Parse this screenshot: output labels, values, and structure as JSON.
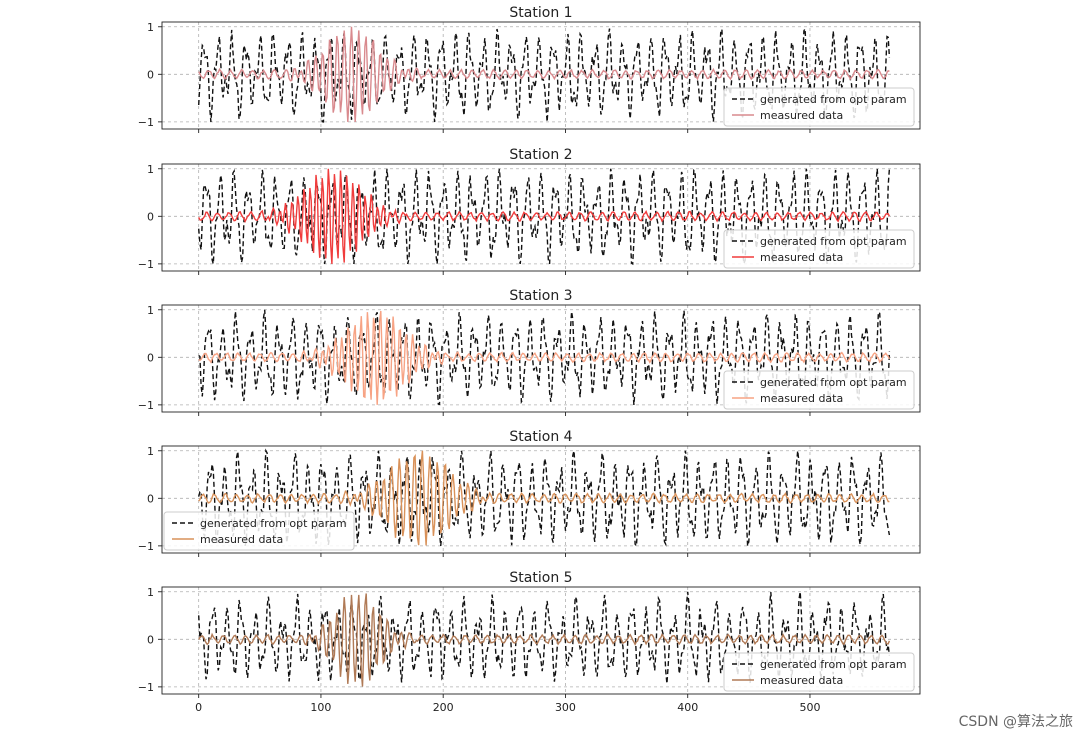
{
  "chart_data": [
    {
      "type": "line",
      "title": "Station 1",
      "xlim": [
        -30,
        590
      ],
      "ylim": [
        -1.15,
        1.1
      ],
      "yticks": [
        -1,
        0,
        1
      ],
      "xticks": [
        0,
        100,
        200,
        300,
        400,
        500
      ],
      "show_x_tick_labels": false,
      "grid": true,
      "series": [
        {
          "name": "generated from opt param",
          "style": "dashed",
          "color": "#111111",
          "amplitude": 0.8,
          "seed": 11
        },
        {
          "name": "measured data",
          "style": "solid",
          "color": "#d98a8e",
          "burst_center": 125,
          "burst_width": 30,
          "burst_freq": 0.17,
          "amplitude": 1.0,
          "seed": 21
        }
      ],
      "legend": "bottom-right"
    },
    {
      "type": "line",
      "title": "Station 2",
      "xlim": [
        -30,
        590
      ],
      "ylim": [
        -1.15,
        1.1
      ],
      "yticks": [
        -1,
        0,
        1
      ],
      "xticks": [
        0,
        100,
        200,
        300,
        400,
        500
      ],
      "show_x_tick_labels": false,
      "grid": true,
      "series": [
        {
          "name": "generated from opt param",
          "style": "dashed",
          "color": "#111111",
          "amplitude": 0.85,
          "seed": 12
        },
        {
          "name": "measured data",
          "style": "solid",
          "color": "#f03c3c",
          "burst_center": 110,
          "burst_width": 32,
          "burst_freq": 0.2,
          "amplitude": 1.0,
          "seed": 22
        }
      ],
      "legend": "bottom-right"
    },
    {
      "type": "line",
      "title": "Station 3",
      "xlim": [
        -30,
        590
      ],
      "ylim": [
        -1.15,
        1.1
      ],
      "yticks": [
        -1,
        0,
        1
      ],
      "xticks": [
        0,
        100,
        200,
        300,
        400,
        500
      ],
      "show_x_tick_labels": false,
      "grid": true,
      "series": [
        {
          "name": "generated from opt param",
          "style": "dashed",
          "color": "#111111",
          "amplitude": 0.8,
          "seed": 13
        },
        {
          "name": "measured data",
          "style": "solid",
          "color": "#f7a384",
          "burst_center": 145,
          "burst_width": 33,
          "burst_freq": 0.19,
          "amplitude": 1.0,
          "seed": 23
        }
      ],
      "legend": "bottom-right"
    },
    {
      "type": "line",
      "title": "Station 4",
      "xlim": [
        -30,
        590
      ],
      "ylim": [
        -1.15,
        1.1
      ],
      "yticks": [
        -1,
        0,
        1
      ],
      "xticks": [
        0,
        100,
        200,
        300,
        400,
        500
      ],
      "show_x_tick_labels": false,
      "grid": true,
      "series": [
        {
          "name": "generated from opt param",
          "style": "dashed",
          "color": "#111111",
          "amplitude": 0.85,
          "seed": 14
        },
        {
          "name": "measured data",
          "style": "solid",
          "color": "#d9925a",
          "burst_center": 180,
          "burst_width": 35,
          "burst_freq": 0.16,
          "amplitude": 1.0,
          "seed": 24
        }
      ],
      "legend": "bottom-left"
    },
    {
      "type": "line",
      "title": "Station 5",
      "xlim": [
        -30,
        590
      ],
      "ylim": [
        -1.15,
        1.1
      ],
      "yticks": [
        -1,
        0,
        1
      ],
      "xticks": [
        0,
        100,
        200,
        300,
        400,
        500
      ],
      "show_x_tick_labels": true,
      "grid": true,
      "series": [
        {
          "name": "generated from opt param",
          "style": "dashed",
          "color": "#111111",
          "amplitude": 0.75,
          "seed": 15
        },
        {
          "name": "measured data",
          "style": "solid",
          "color": "#b07a56",
          "burst_center": 130,
          "burst_width": 25,
          "burst_freq": 0.17,
          "amplitude": 1.0,
          "seed": 25
        }
      ],
      "legend": "bottom-right"
    }
  ],
  "watermark": "CSDN @算法之旅"
}
